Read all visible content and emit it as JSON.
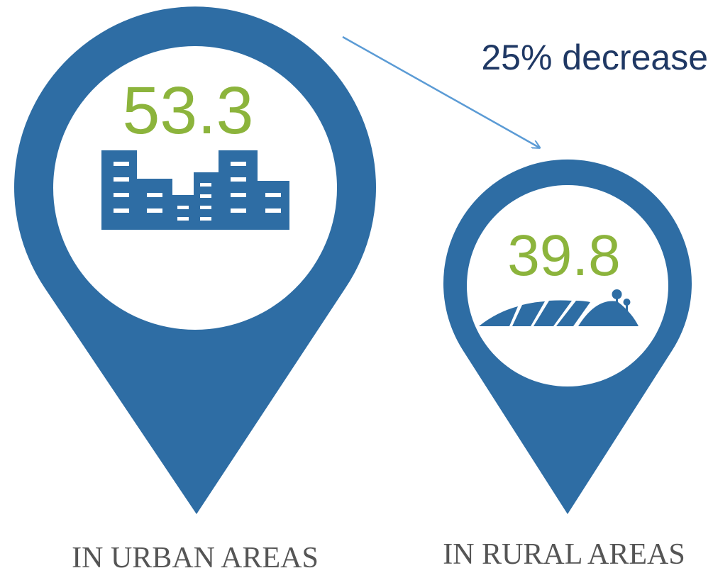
{
  "annotation": "25% decrease",
  "pins": [
    {
      "value": 53.3,
      "label": "IN URBAN AREAS"
    },
    {
      "value": 39.8,
      "label": "IN RURAL AREAS"
    }
  ]
}
